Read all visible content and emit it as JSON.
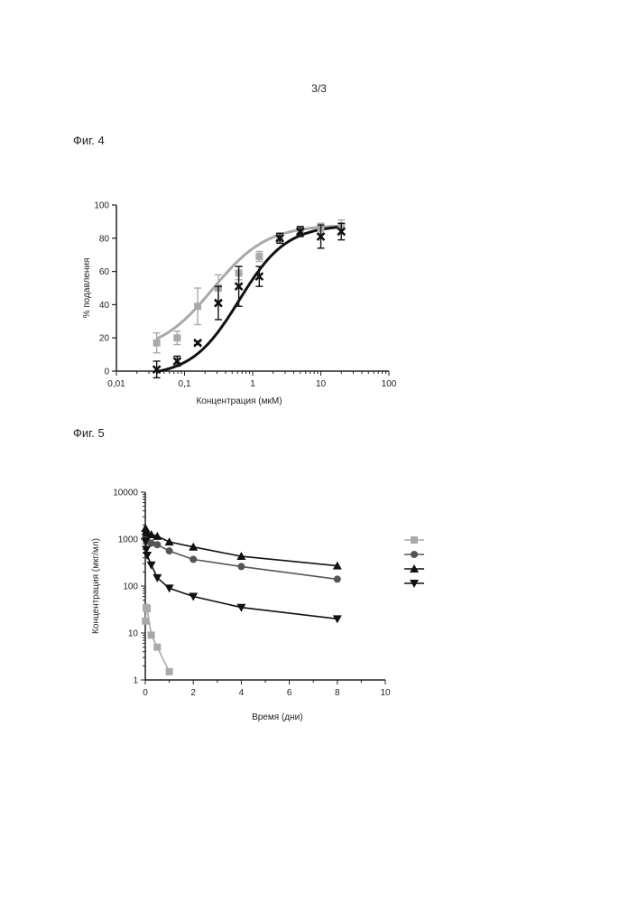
{
  "page_number": "3/3",
  "figures": {
    "fig4": {
      "label": "Фиг. 4"
    },
    "fig5": {
      "label": "Фиг. 5"
    }
  },
  "colors": {
    "gray": "#a9a9a9",
    "black": "#111111"
  },
  "chart_data": [
    {
      "type": "scatter",
      "title": "",
      "xlabel": "Концентрация (мкМ)",
      "ylabel": "% подавления",
      "xscale": "log",
      "xlim": [
        0.01,
        100
      ],
      "ylim": [
        0,
        100
      ],
      "xticks": [
        0.01,
        0.1,
        1,
        10,
        100
      ],
      "xtick_labels": [
        "0,01",
        "0,1",
        "1",
        "10",
        "100"
      ],
      "yticks": [
        0,
        20,
        40,
        60,
        80,
        100
      ],
      "ytick_labels": [
        "0",
        "20",
        "40",
        "60",
        "80",
        "100"
      ],
      "fit_curves": "sigmoidal",
      "series": [
        {
          "marker": "square",
          "color": "#a9a9a9",
          "x": [
            0.039,
            0.078,
            0.156,
            0.313,
            0.625,
            1.25,
            2.5,
            5,
            10,
            20
          ],
          "y": [
            17,
            20,
            39,
            50,
            59,
            69,
            80,
            85,
            86,
            87
          ],
          "err": [
            6,
            4,
            11,
            8,
            4,
            3,
            3,
            2,
            3,
            4
          ],
          "fit": {
            "bottom": 11,
            "top": 88,
            "ec50": 0.26,
            "hill": 1.1
          }
        },
        {
          "marker": "x",
          "color": "#111111",
          "x": [
            0.039,
            0.078,
            0.156,
            0.313,
            0.625,
            1.25,
            2.5,
            5,
            10,
            20
          ],
          "y": [
            1,
            6,
            17,
            41,
            51,
            57,
            80,
            84,
            81,
            84
          ],
          "err": [
            5,
            3,
            1,
            10,
            12,
            6,
            3,
            3,
            7,
            5
          ],
          "fit": {
            "bottom": -3,
            "top": 88,
            "ec50": 0.63,
            "hill": 1.25
          }
        }
      ]
    },
    {
      "type": "line",
      "title": "",
      "xlabel": "Время (дни)",
      "ylabel": "Концентрация (мкг/мл)",
      "yscale": "log",
      "xlim": [
        0,
        10
      ],
      "ylim": [
        1,
        10000
      ],
      "xticks": [
        0,
        2,
        4,
        6,
        8,
        10
      ],
      "xtick_labels": [
        "0",
        "2",
        "4",
        "6",
        "8",
        "10"
      ],
      "yticks": [
        1,
        10,
        100,
        1000,
        10000
      ],
      "ytick_labels": [
        "1",
        "10",
        "100",
        "1000",
        "10000"
      ],
      "legend": "right",
      "series": [
        {
          "marker": "square",
          "color": "#a9a9a9",
          "x": [
            0.01,
            0.04,
            0.08,
            0.25,
            0.5,
            1
          ],
          "y": [
            18,
            35,
            33,
            9,
            5,
            1.5
          ]
        },
        {
          "marker": "circle",
          "color": "#555555",
          "x": [
            0.01,
            0.04,
            0.08,
            0.25,
            0.5,
            1,
            2,
            4,
            8
          ],
          "y": [
            1200,
            1050,
            900,
            820,
            760,
            560,
            370,
            260,
            140
          ]
        },
        {
          "marker": "triangle-up",
          "color": "#111111",
          "x": [
            0.01,
            0.04,
            0.08,
            0.25,
            0.5,
            1,
            2,
            4,
            8
          ],
          "y": [
            1700,
            1500,
            1350,
            1250,
            1150,
            870,
            680,
            430,
            270
          ]
        },
        {
          "marker": "triangle-down",
          "color": "#111111",
          "x": [
            0.01,
            0.04,
            0.08,
            0.25,
            0.5,
            1,
            2,
            4,
            8
          ],
          "y": [
            900,
            600,
            450,
            280,
            150,
            90,
            60,
            35,
            20
          ]
        }
      ]
    }
  ]
}
